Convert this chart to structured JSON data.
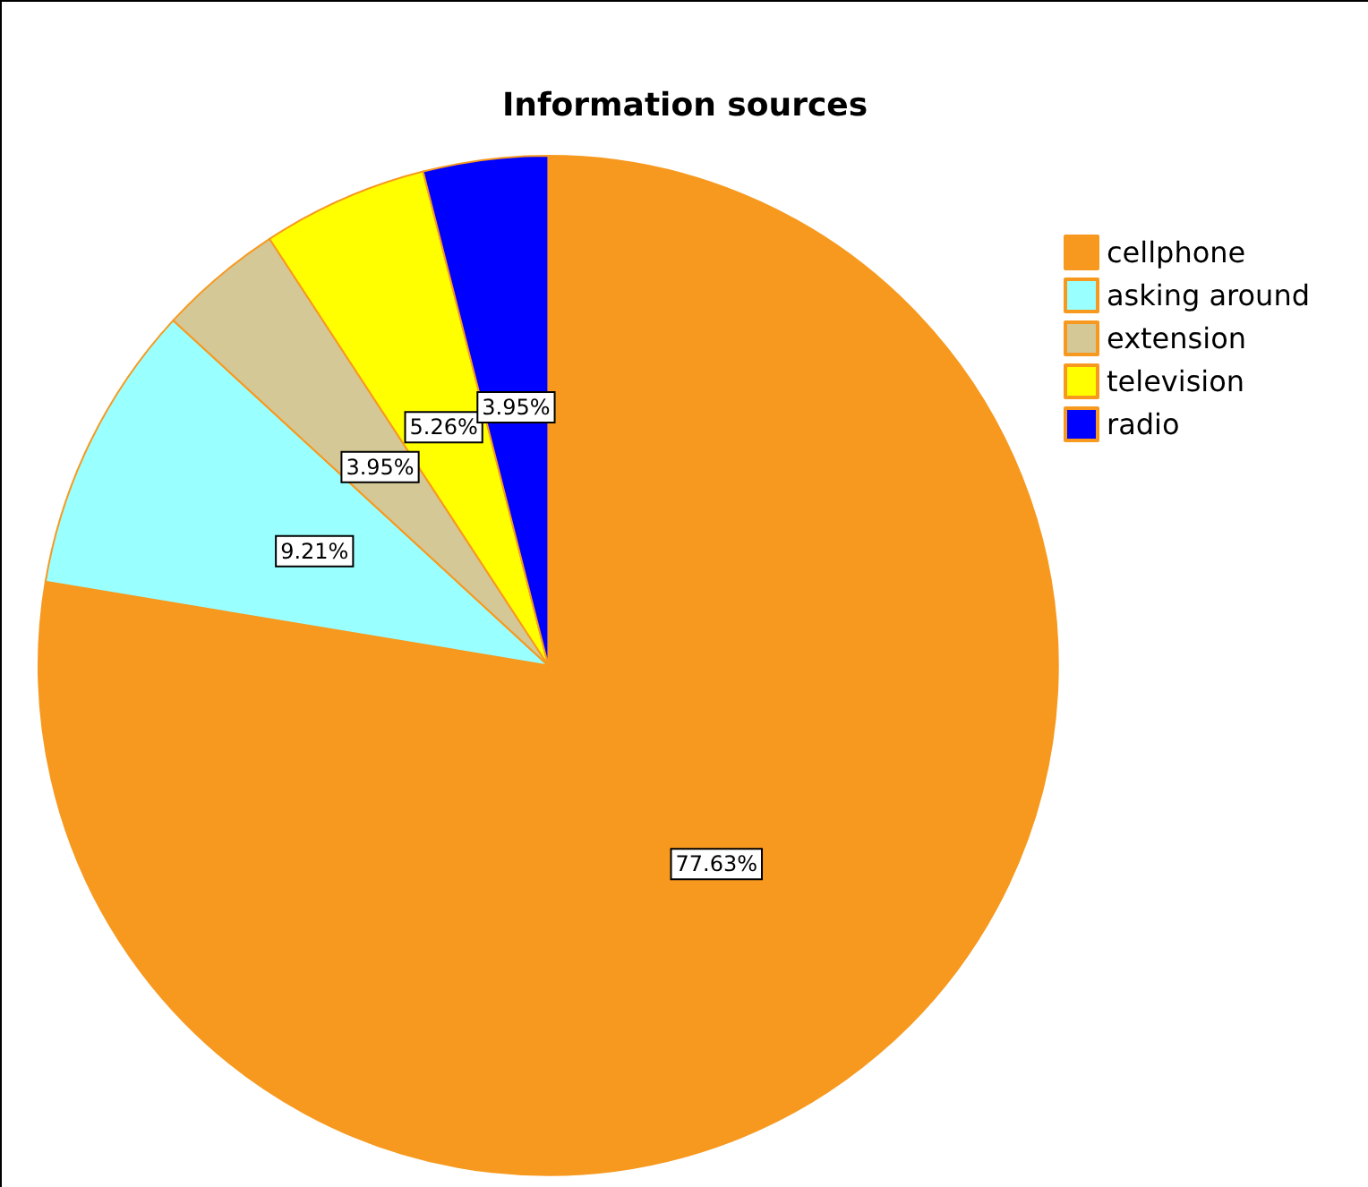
{
  "chart_data": {
    "type": "pie",
    "title": "Information sources",
    "categories": [
      "cellphone",
      "asking around",
      "extension",
      "television",
      "radio"
    ],
    "values": [
      77.63,
      9.21,
      3.95,
      5.26,
      3.95
    ],
    "value_labels": [
      "77.63%",
      "9.21%",
      "3.95%",
      "5.26%",
      "3.95%"
    ],
    "colors": [
      "#f7991f",
      "#99ffff",
      "#d5c897",
      "#ffff00",
      "#0000ff"
    ],
    "legend": "top right"
  }
}
